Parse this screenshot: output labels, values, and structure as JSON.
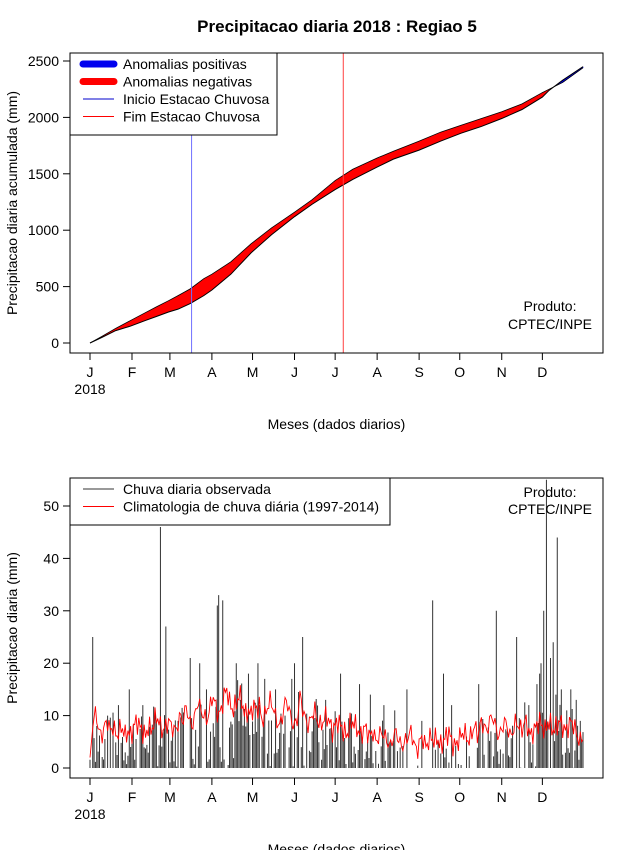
{
  "title": "Precipitacao diaria 2018 : Regiao 5",
  "chart_data": [
    {
      "type": "area",
      "ylabel": "Precipitacao diaria acumulada (mm)",
      "xlabel": "Meses (dados diarios)",
      "year_label": "2018",
      "month_ticks": [
        "J",
        "F",
        "M",
        "A",
        "M",
        "J",
        "J",
        "A",
        "S",
        "O",
        "N",
        "D"
      ],
      "y_ticks": [
        0,
        500,
        1000,
        1500,
        2000,
        2500
      ],
      "ylim": [
        0,
        2500
      ],
      "xlim_days": [
        1,
        365
      ],
      "credit": [
        "Produto:",
        "CPTEC/INPE"
      ],
      "legend": {
        "placement": "top-left",
        "entries": [
          {
            "label": "Anomalias positivas",
            "color": "#0000ee",
            "style": "thick"
          },
          {
            "label": "Anomalias negativas",
            "color": "#ff0000",
            "style": "thick"
          },
          {
            "label": "Inicio Estacao Chuvosa",
            "color": "#0000cc",
            "style": "thin"
          },
          {
            "label": "Fim Estacao Chuvosa",
            "color": "#ff0000",
            "style": "thin"
          }
        ]
      },
      "vlines": [
        {
          "name": "Inicio Estacao Chuvosa",
          "day": 76,
          "color": "#7070ff"
        },
        {
          "name": "Fim Estacao Chuvosa",
          "day": 188,
          "color": "#ff4040"
        }
      ],
      "series": [
        {
          "name": "observed_cumulative",
          "points": [
            [
              1,
              0
            ],
            [
              10,
              50
            ],
            [
              20,
              110
            ],
            [
              31,
              150
            ],
            [
              42,
              200
            ],
            [
              50,
              235
            ],
            [
              59,
              275
            ],
            [
              66,
              300
            ],
            [
              75,
              350
            ],
            [
              85,
              420
            ],
            [
              91,
              470
            ],
            [
              105,
              610
            ],
            [
              120,
              800
            ],
            [
              135,
              960
            ],
            [
              152,
              1120
            ],
            [
              165,
              1230
            ],
            [
              182,
              1360
            ],
            [
              195,
              1450
            ],
            [
              213,
              1560
            ],
            [
              225,
              1630
            ],
            [
              244,
              1710
            ],
            [
              260,
              1790
            ],
            [
              275,
              1860
            ],
            [
              290,
              1920
            ],
            [
              305,
              1990
            ],
            [
              320,
              2070
            ],
            [
              335,
              2180
            ],
            [
              340,
              2240
            ],
            [
              350,
              2330
            ],
            [
              365,
              2450
            ]
          ]
        },
        {
          "name": "climatology_cumulative",
          "points": [
            [
              1,
              0
            ],
            [
              10,
              60
            ],
            [
              20,
              130
            ],
            [
              31,
              200
            ],
            [
              42,
              270
            ],
            [
              50,
              320
            ],
            [
              59,
              375
            ],
            [
              66,
              420
            ],
            [
              75,
              480
            ],
            [
              85,
              570
            ],
            [
              91,
              610
            ],
            [
              105,
              720
            ],
            [
              120,
              880
            ],
            [
              135,
              1020
            ],
            [
              152,
              1160
            ],
            [
              165,
              1270
            ],
            [
              182,
              1440
            ],
            [
              195,
              1540
            ],
            [
              213,
              1640
            ],
            [
              225,
              1700
            ],
            [
              244,
              1790
            ],
            [
              260,
              1870
            ],
            [
              275,
              1930
            ],
            [
              290,
              1990
            ],
            [
              305,
              2050
            ],
            [
              320,
              2120
            ],
            [
              335,
              2220
            ],
            [
              340,
              2250
            ],
            [
              350,
              2310
            ],
            [
              365,
              2440
            ]
          ]
        }
      ]
    },
    {
      "type": "bar",
      "ylabel": "Precipitacao diaria (mm)",
      "xlabel": "Meses (dados diarios)",
      "year_label": "2018",
      "month_ticks": [
        "J",
        "F",
        "M",
        "A",
        "M",
        "J",
        "J",
        "A",
        "S",
        "O",
        "N",
        "D"
      ],
      "y_ticks": [
        0,
        10,
        20,
        30,
        40,
        50
      ],
      "ylim": [
        0,
        55
      ],
      "xlim_days": [
        1,
        365
      ],
      "credit": [
        "Produto:",
        "CPTEC/INPE"
      ],
      "legend": {
        "placement": "top-left",
        "entries": [
          {
            "label": "Chuva diaria observada",
            "color": "#333333",
            "style": "thin"
          },
          {
            "label": "Climatologia de chuva diária (1997-2014)",
            "color": "#ff0000",
            "style": "thin"
          }
        ]
      },
      "observed_peaks": [
        [
          3,
          25
        ],
        [
          14,
          10
        ],
        [
          22,
          12
        ],
        [
          30,
          15
        ],
        [
          40,
          12
        ],
        [
          53,
          46
        ],
        [
          57,
          27
        ],
        [
          66,
          9
        ],
        [
          75,
          21
        ],
        [
          82,
          20
        ],
        [
          87,
          15
        ],
        [
          95,
          31
        ],
        [
          96,
          33
        ],
        [
          99,
          32
        ],
        [
          109,
          20
        ],
        [
          112,
          13
        ],
        [
          118,
          18
        ],
        [
          125,
          20
        ],
        [
          130,
          17
        ],
        [
          138,
          15
        ],
        [
          150,
          17
        ],
        [
          152,
          20
        ],
        [
          158,
          25
        ],
        [
          166,
          10
        ],
        [
          175,
          13
        ],
        [
          186,
          18
        ],
        [
          200,
          16
        ],
        [
          208,
          14
        ],
        [
          218,
          12
        ],
        [
          226,
          11
        ],
        [
          235,
          15
        ],
        [
          246,
          9
        ],
        [
          254,
          32
        ],
        [
          262,
          18
        ],
        [
          268,
          12
        ],
        [
          279,
          6
        ],
        [
          288,
          16
        ],
        [
          297,
          7
        ],
        [
          301,
          30
        ],
        [
          309,
          7
        ],
        [
          316,
          25
        ],
        [
          325,
          12
        ],
        [
          331,
          16
        ],
        [
          333,
          18
        ],
        [
          334,
          20
        ],
        [
          336,
          30
        ],
        [
          338,
          55
        ],
        [
          341,
          21
        ],
        [
          343,
          24
        ],
        [
          345,
          14
        ],
        [
          346,
          44
        ],
        [
          349,
          15
        ],
        [
          353,
          11
        ],
        [
          356,
          15
        ],
        [
          360,
          13
        ],
        [
          363,
          9
        ]
      ],
      "climatology": [
        2,
        8,
        11,
        7,
        6,
        8,
        9,
        7,
        8,
        6,
        7,
        8,
        6,
        7,
        6,
        8,
        9,
        8,
        7,
        6,
        8,
        7,
        9,
        10,
        8,
        7,
        8,
        9,
        8,
        7,
        8,
        10,
        9,
        12,
        9,
        8,
        10,
        13,
        11,
        10,
        9,
        11,
        14,
        12,
        10,
        11,
        14,
        15,
        12,
        11,
        12,
        14,
        13,
        10,
        11,
        10,
        12,
        11,
        12,
        9,
        10,
        12,
        13,
        11,
        9,
        8,
        10,
        13,
        12,
        9,
        8,
        9,
        14,
        11,
        9,
        8,
        10,
        11,
        9,
        8,
        9,
        10,
        9,
        7,
        8,
        9,
        8,
        7,
        6,
        8,
        9,
        8,
        7,
        6,
        8,
        7,
        6,
        7,
        5,
        6,
        7,
        6,
        5,
        4,
        6,
        7,
        5,
        4,
        5,
        6,
        7,
        5,
        3,
        5,
        6,
        4,
        5,
        6,
        5,
        6,
        4,
        5,
        6,
        7,
        5,
        4,
        5,
        6,
        7,
        6,
        5,
        7,
        8,
        6,
        9,
        8,
        7,
        9,
        10,
        8,
        6,
        7,
        9,
        8,
        6,
        7,
        9,
        8,
        7,
        9,
        8,
        6,
        7,
        8,
        9,
        8,
        7,
        9,
        8,
        7,
        8,
        9,
        8,
        7,
        8,
        9,
        8,
        6,
        5,
        6
      ]
    }
  ]
}
